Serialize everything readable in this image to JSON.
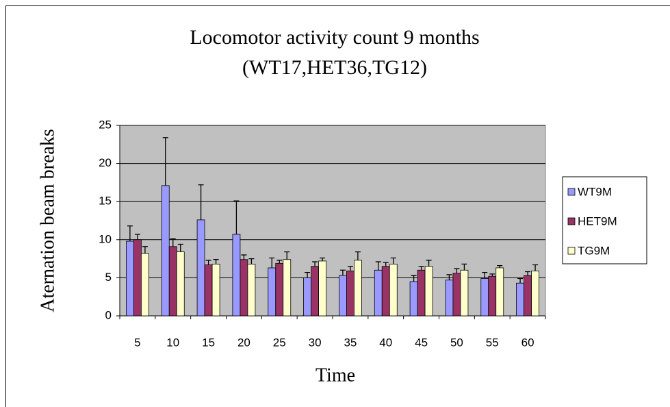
{
  "chart_data": {
    "type": "bar",
    "title": "Locomotor activity count 9 months",
    "subtitle": "(WT17,HET36,TG12)",
    "x_label": "Time",
    "y_label": "Aternation beam breaks",
    "categories": [
      "5",
      "10",
      "15",
      "20",
      "25",
      "30",
      "35",
      "40",
      "45",
      "50",
      "55",
      "60"
    ],
    "series": [
      {
        "name": "WT9M",
        "color": "#9999ff",
        "values": [
          9.8,
          17.1,
          12.6,
          10.7,
          6.3,
          5.0,
          5.3,
          6.0,
          4.5,
          4.7,
          4.9,
          4.3
        ],
        "errors": [
          2.0,
          6.3,
          4.6,
          4.4,
          1.3,
          0.7,
          0.7,
          1.1,
          0.8,
          0.7,
          0.8,
          0.6
        ]
      },
      {
        "name": "HET9M",
        "color": "#993366",
        "values": [
          10.0,
          9.1,
          6.7,
          7.4,
          6.9,
          6.5,
          5.9,
          6.5,
          6.0,
          5.6,
          5.2,
          5.3
        ],
        "errors": [
          0.7,
          1.0,
          0.6,
          0.6,
          0.4,
          0.6,
          0.6,
          0.5,
          0.5,
          0.6,
          0.3,
          0.5
        ]
      },
      {
        "name": "TG9M",
        "color": "#ffffcc",
        "values": [
          8.2,
          8.4,
          6.8,
          6.8,
          7.4,
          7.2,
          7.3,
          6.8,
          6.5,
          6.0,
          6.3,
          5.9
        ],
        "errors": [
          0.9,
          1.0,
          0.6,
          0.7,
          1.0,
          0.4,
          1.1,
          0.8,
          0.8,
          0.8,
          0.3,
          0.8
        ]
      }
    ],
    "ylim": [
      0,
      25
    ],
    "yticks": [
      0,
      5,
      10,
      15,
      20,
      25
    ],
    "grid": true,
    "legend": "right",
    "plot_background": "#c0c0c0"
  }
}
